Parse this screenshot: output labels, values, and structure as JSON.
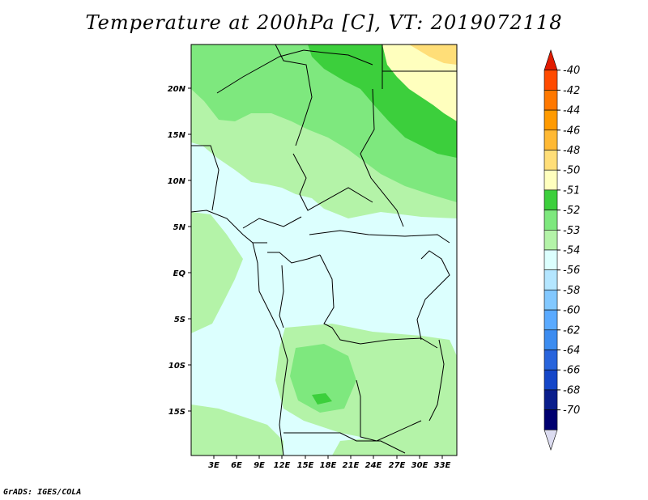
{
  "title": "Temperature at 200hPa [C], VT: 2019072118",
  "credit": "GrADS: IGES/COLA",
  "map": {
    "lat_labels": [
      "20N",
      "15N",
      "10N",
      "5N",
      "EQ",
      "5S",
      "10S",
      "15S"
    ],
    "lon_labels": [
      "3E",
      "6E",
      "9E",
      "12E",
      "15E",
      "18E",
      "21E",
      "24E",
      "27E",
      "30E",
      "33E"
    ]
  },
  "legend": {
    "labels": [
      "-40",
      "-42",
      "-44",
      "-46",
      "-48",
      "-50",
      "-51",
      "-52",
      "-53",
      "-54",
      "-56",
      "-58",
      "-60",
      "-62",
      "-64",
      "-66",
      "-68",
      "-70"
    ],
    "colors": [
      "#e11b00",
      "#ff4a00",
      "#ff7800",
      "#ff9a00",
      "#ffb934",
      "#ffde78",
      "#ffffbe",
      "#3ccf3c",
      "#7ee87e",
      "#b4f3a8",
      "#dcfffe",
      "#b4e6ff",
      "#82c8ff",
      "#5aaaff",
      "#3c8cf0",
      "#2864dc",
      "#1446c8",
      "#0a1e8c",
      "#000070",
      "#dcdcf0"
    ]
  }
}
